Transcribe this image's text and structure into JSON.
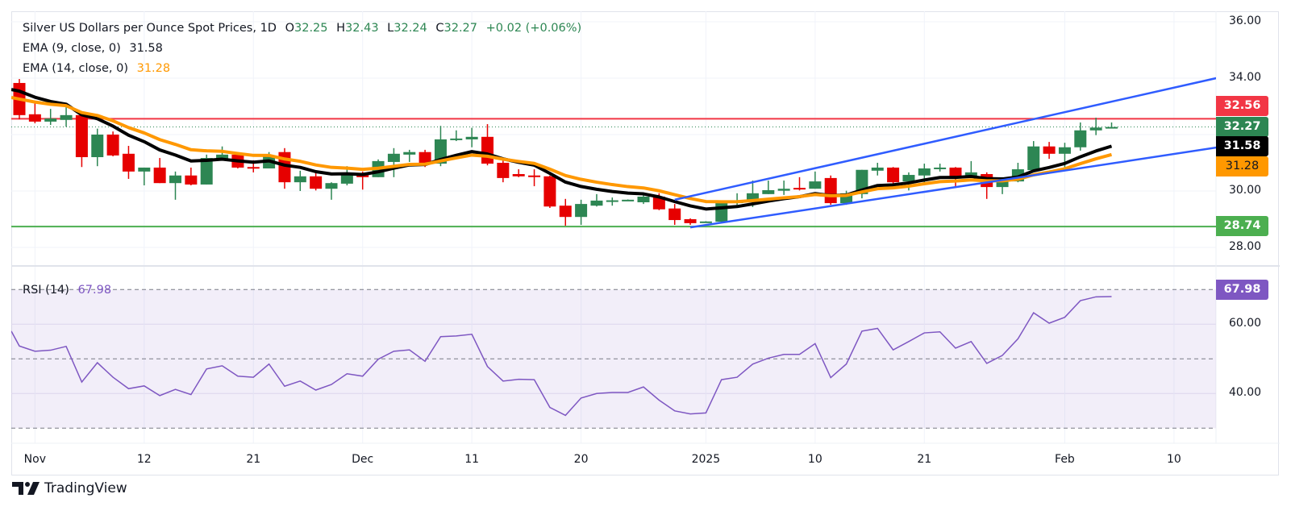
{
  "chart_data": {
    "type": "candlestick",
    "title": "Silver US Dollars per Ounce Spot Prices, 1D",
    "ohlc_label": {
      "o": "O",
      "h": "H",
      "l": "L",
      "c": "C",
      "open": "32.25",
      "high": "32.43",
      "low": "32.24",
      "close": "32.27",
      "change": "+0.02 (+0.06%)"
    },
    "indicators": [
      {
        "label": "EMA (9, close, 0)",
        "value": "31.58",
        "color": "#000000",
        "period": 9,
        "start": 33.54
      },
      {
        "label": "EMA (14, close, 0)",
        "value": "31.28",
        "color": "#ff9800",
        "period": 14,
        "start": 33.26
      }
    ],
    "candles_ohlc": [
      [
        33.83,
        33.97,
        32.54,
        32.69
      ],
      [
        32.72,
        33.17,
        32.4,
        32.46
      ],
      [
        32.46,
        32.91,
        32.34,
        32.57
      ],
      [
        32.52,
        32.97,
        32.28,
        32.69
      ],
      [
        32.69,
        32.75,
        30.85,
        31.2
      ],
      [
        31.2,
        32.21,
        30.88,
        32.0
      ],
      [
        32.0,
        32.11,
        31.23,
        31.26
      ],
      [
        31.32,
        31.6,
        30.43,
        30.69
      ],
      [
        30.69,
        30.83,
        30.2,
        30.83
      ],
      [
        30.83,
        31.17,
        30.28,
        30.28
      ],
      [
        30.28,
        30.69,
        29.69,
        30.55
      ],
      [
        30.55,
        30.83,
        30.2,
        30.23
      ],
      [
        30.23,
        31.29,
        30.23,
        31.17
      ],
      [
        31.14,
        31.58,
        31.12,
        31.29
      ],
      [
        31.29,
        31.38,
        30.8,
        30.83
      ],
      [
        30.85,
        31.09,
        30.66,
        30.83
      ],
      [
        30.8,
        31.38,
        30.8,
        31.26
      ],
      [
        31.38,
        31.52,
        30.08,
        30.31
      ],
      [
        30.31,
        30.72,
        30.0,
        30.52
      ],
      [
        30.52,
        30.72,
        30.02,
        30.08
      ],
      [
        30.08,
        30.31,
        29.69,
        30.28
      ],
      [
        30.26,
        30.88,
        30.2,
        30.63
      ],
      [
        30.63,
        30.69,
        30.05,
        30.49
      ],
      [
        30.49,
        31.12,
        30.49,
        31.06
      ],
      [
        31.03,
        31.52,
        30.49,
        31.32
      ],
      [
        31.29,
        31.46,
        31.03,
        31.38
      ],
      [
        31.38,
        31.46,
        30.85,
        31.0
      ],
      [
        30.97,
        32.31,
        30.88,
        31.83
      ],
      [
        31.83,
        32.15,
        31.77,
        31.86
      ],
      [
        31.83,
        32.24,
        31.55,
        31.92
      ],
      [
        31.92,
        32.37,
        30.91,
        30.97
      ],
      [
        31.0,
        31.12,
        30.31,
        30.46
      ],
      [
        30.6,
        30.77,
        30.49,
        30.52
      ],
      [
        30.55,
        30.77,
        30.17,
        30.52
      ],
      [
        30.52,
        30.55,
        29.4,
        29.45
      ],
      [
        29.48,
        29.72,
        28.77,
        29.08
      ],
      [
        29.08,
        29.69,
        28.8,
        29.54
      ],
      [
        29.48,
        29.89,
        29.45,
        29.66
      ],
      [
        29.66,
        29.77,
        29.48,
        29.67
      ],
      [
        29.68,
        29.7,
        29.67,
        29.69
      ],
      [
        29.6,
        29.89,
        29.54,
        29.8
      ],
      [
        29.8,
        29.92,
        29.32,
        29.35
      ],
      [
        29.38,
        29.54,
        28.8,
        28.97
      ],
      [
        29.0,
        29.03,
        28.8,
        28.86
      ],
      [
        28.9,
        28.93,
        28.89,
        28.92
      ],
      [
        28.91,
        29.63,
        28.86,
        29.57
      ],
      [
        29.57,
        29.92,
        29.51,
        29.63
      ],
      [
        29.6,
        30.37,
        29.43,
        29.92
      ],
      [
        29.89,
        30.37,
        29.89,
        30.03
      ],
      [
        30.01,
        30.37,
        29.86,
        30.08
      ],
      [
        30.11,
        30.49,
        30.02,
        30.08
      ],
      [
        30.08,
        30.69,
        30.08,
        30.34
      ],
      [
        30.46,
        30.55,
        29.51,
        29.57
      ],
      [
        29.57,
        30.01,
        29.51,
        29.92
      ],
      [
        29.89,
        30.75,
        29.74,
        30.75
      ],
      [
        30.72,
        31.0,
        30.55,
        30.83
      ],
      [
        30.83,
        30.85,
        30.14,
        30.31
      ],
      [
        30.34,
        30.66,
        30.02,
        30.57
      ],
      [
        30.55,
        30.97,
        30.23,
        30.8
      ],
      [
        30.81,
        30.97,
        30.69,
        30.83
      ],
      [
        30.83,
        30.85,
        30.11,
        30.49
      ],
      [
        30.49,
        31.06,
        30.46,
        30.66
      ],
      [
        30.6,
        30.66,
        29.72,
        30.14
      ],
      [
        30.14,
        30.49,
        29.89,
        30.37
      ],
      [
        30.34,
        31.0,
        30.31,
        30.77
      ],
      [
        30.74,
        31.77,
        30.74,
        31.58
      ],
      [
        31.58,
        31.74,
        31.14,
        31.32
      ],
      [
        31.32,
        31.71,
        30.72,
        31.55
      ],
      [
        31.55,
        32.43,
        31.43,
        32.15
      ],
      [
        32.15,
        32.6,
        31.98,
        32.25
      ],
      [
        32.25,
        32.43,
        32.24,
        32.27
      ]
    ],
    "rsi": {
      "label": "RSI (14)",
      "value": "67.98",
      "color": "#7e57c2",
      "bands": [
        30,
        50,
        70
      ],
      "values": [
        53.7,
        52.2,
        52.5,
        53.6,
        43.3,
        48.9,
        44.7,
        41.4,
        42.2,
        39.4,
        41.2,
        39.7,
        47.1,
        48.0,
        45.0,
        44.7,
        48.5,
        42.1,
        43.6,
        41.0,
        42.6,
        45.7,
        45.0,
        49.9,
        52.2,
        52.6,
        49.3,
        56.4,
        56.6,
        57.1,
        47.8,
        43.6,
        44.1,
        44.0,
        36.0,
        33.7,
        38.7,
        40.0,
        40.3,
        40.3,
        41.9,
        38.1,
        35.0,
        34.1,
        34.4,
        44.0,
        44.7,
        48.5,
        50.2,
        51.3,
        51.3,
        54.4,
        44.6,
        48.5,
        58.0,
        58.8,
        52.6,
        55.0,
        57.5,
        57.8,
        53.1,
        55.0,
        48.7,
        51.0,
        55.8,
        63.3,
        60.3,
        62.0,
        66.8,
        67.9,
        67.98
      ],
      "ticks": [
        {
          "v": 60,
          "label": "60.00"
        },
        {
          "v": 40,
          "label": "40.00"
        }
      ],
      "ylim": [
        30,
        70
      ]
    },
    "price_ticks": [
      {
        "v": 36,
        "label": "36.00"
      },
      {
        "v": 34,
        "label": "34.00"
      },
      {
        "v": 30,
        "label": "30.00"
      },
      {
        "v": 28,
        "label": "28.00"
      }
    ],
    "ylim": [
      27.5,
      36.3
    ],
    "horizontal_levels": [
      {
        "name": "resistance",
        "price": 32.56,
        "label": "32.56",
        "color": "#f23645"
      },
      {
        "name": "support",
        "price": 28.74,
        "label": "28.74",
        "color": "#4caf50"
      }
    ],
    "last_price": {
      "price": 32.27,
      "label": "32.27",
      "color": "#2d8653"
    },
    "channel": {
      "color": "#2f5cff",
      "upper": {
        "from": [
          42,
          29.69
        ],
        "to": [
          76.7,
          34.0
        ]
      },
      "lower": {
        "from": [
          43,
          28.71
        ],
        "to": [
          76.7,
          31.54
        ]
      }
    },
    "time_ticks": [
      {
        "i": 1,
        "label": "Nov"
      },
      {
        "i": 8,
        "label": "12"
      },
      {
        "i": 15,
        "label": "21"
      },
      {
        "i": 22,
        "label": "Dec"
      },
      {
        "i": 29,
        "label": "11"
      },
      {
        "i": 36,
        "label": "20"
      },
      {
        "i": 44,
        "label": "2025"
      },
      {
        "i": 51,
        "label": "10"
      },
      {
        "i": 58,
        "label": "21"
      },
      {
        "i": 67,
        "label": "Feb"
      },
      {
        "i": 74,
        "label": "10"
      }
    ],
    "colors": {
      "up": "#2d8653",
      "down": "#e60000"
    }
  },
  "branding": {
    "name": "TradingView"
  }
}
